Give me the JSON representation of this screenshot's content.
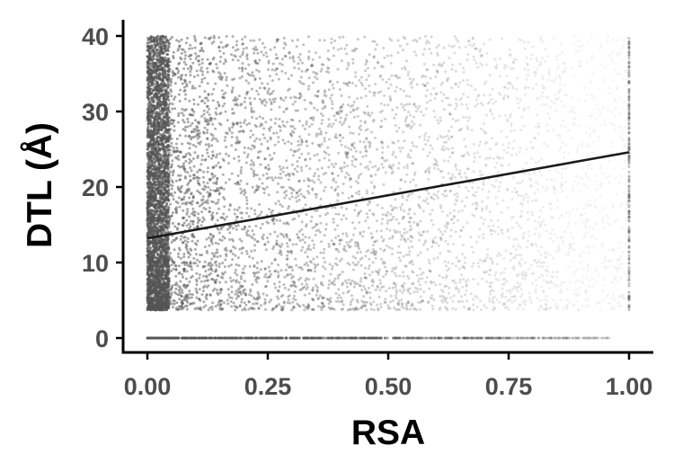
{
  "chart_data": {
    "type": "scatter",
    "xlabel": "RSA",
    "ylabel": "DTL (Å)",
    "xlim": [
      0,
      1
    ],
    "ylim": [
      0,
      40
    ],
    "x_ticks": [
      "0.00",
      "0.25",
      "0.50",
      "0.75",
      "1.00"
    ],
    "y_ticks": [
      "0",
      "10",
      "20",
      "30",
      "40"
    ],
    "grid": false,
    "legend": "none",
    "point_color": "#555555",
    "line_color": "#1a1a1a",
    "trend_line": {
      "x": [
        0,
        1
      ],
      "y": [
        13.2,
        24.6
      ]
    },
    "point_cloud": {
      "description_x_range": [
        0,
        1
      ],
      "y_main_range": [
        3.7,
        40
      ],
      "y_baseline_value": 0,
      "dense_region": {
        "x": [
          0,
          0.05
        ],
        "y": [
          3.7,
          40
        ]
      }
    }
  }
}
